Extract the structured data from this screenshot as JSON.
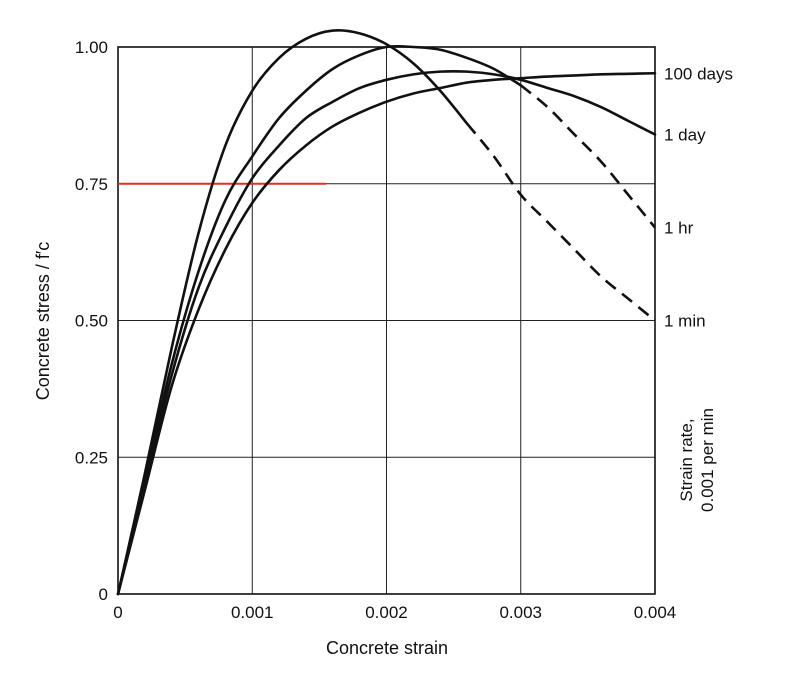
{
  "chart_data": {
    "type": "line",
    "title": "",
    "xlabel": "Concrete strain",
    "ylabel": "Concrete stress / f′c",
    "xlim": [
      0,
      0.004
    ],
    "ylim": [
      0,
      1.0
    ],
    "grid": true,
    "x_ticks": [
      {
        "value": 0,
        "label": "0"
      },
      {
        "value": 0.001,
        "label": "0.001"
      },
      {
        "value": 0.002,
        "label": "0.002"
      },
      {
        "value": 0.003,
        "label": "0.003"
      },
      {
        "value": 0.004,
        "label": "0.004"
      }
    ],
    "y_ticks": [
      {
        "value": 0,
        "label": "0"
      },
      {
        "value": 0.25,
        "label": "0.25"
      },
      {
        "value": 0.5,
        "label": "0.50"
      },
      {
        "value": 0.75,
        "label": "0.75"
      },
      {
        "value": 1.0,
        "label": "1.00"
      }
    ],
    "right_axis_label": [
      "Strain rate,",
      "0.001 per min"
    ],
    "series": [
      {
        "name": "1 min",
        "end_label": "1 min",
        "color": "#111111",
        "points": [
          [
            0,
            0
          ],
          [
            0.0002,
            0.22
          ],
          [
            0.0004,
            0.45
          ],
          [
            0.0006,
            0.66
          ],
          [
            0.0008,
            0.82
          ],
          [
            0.001,
            0.92
          ],
          [
            0.0012,
            0.98
          ],
          [
            0.0014,
            1.015
          ],
          [
            0.0016,
            1.03
          ],
          [
            0.0018,
            1.025
          ],
          [
            0.002,
            1.005
          ],
          [
            0.0022,
            0.97
          ],
          [
            0.0024,
            0.92
          ],
          [
            0.0026,
            0.86
          ],
          [
            0.0028,
            0.8
          ],
          [
            0.003,
            0.73
          ],
          [
            0.0032,
            0.68
          ],
          [
            0.0034,
            0.63
          ],
          [
            0.0036,
            0.58
          ],
          [
            0.0038,
            0.54
          ],
          [
            0.004,
            0.5
          ]
        ],
        "dashed_from": 0.0025
      },
      {
        "name": "1 hr",
        "end_label": "1 hr",
        "color": "#111111",
        "points": [
          [
            0,
            0
          ],
          [
            0.0002,
            0.21
          ],
          [
            0.0004,
            0.42
          ],
          [
            0.0006,
            0.59
          ],
          [
            0.0008,
            0.72
          ],
          [
            0.001,
            0.8
          ],
          [
            0.0012,
            0.87
          ],
          [
            0.0014,
            0.92
          ],
          [
            0.0016,
            0.96
          ],
          [
            0.0018,
            0.985
          ],
          [
            0.002,
            1.0
          ],
          [
            0.0022,
            1.0
          ],
          [
            0.0024,
            0.995
          ],
          [
            0.0026,
            0.98
          ],
          [
            0.0028,
            0.96
          ],
          [
            0.003,
            0.93
          ],
          [
            0.0032,
            0.89
          ],
          [
            0.0034,
            0.84
          ],
          [
            0.0036,
            0.79
          ],
          [
            0.0038,
            0.73
          ],
          [
            0.004,
            0.67
          ]
        ],
        "dashed_from": 0.0029
      },
      {
        "name": "1 day",
        "end_label": "1 day",
        "color": "#111111",
        "points": [
          [
            0,
            0
          ],
          [
            0.0002,
            0.2
          ],
          [
            0.0004,
            0.4
          ],
          [
            0.0006,
            0.56
          ],
          [
            0.0008,
            0.67
          ],
          [
            0.001,
            0.76
          ],
          [
            0.0012,
            0.82
          ],
          [
            0.0014,
            0.87
          ],
          [
            0.0016,
            0.9
          ],
          [
            0.0018,
            0.925
          ],
          [
            0.002,
            0.94
          ],
          [
            0.0022,
            0.95
          ],
          [
            0.0024,
            0.955
          ],
          [
            0.0026,
            0.955
          ],
          [
            0.0028,
            0.95
          ],
          [
            0.003,
            0.94
          ],
          [
            0.0032,
            0.925
          ],
          [
            0.0034,
            0.91
          ],
          [
            0.0036,
            0.89
          ],
          [
            0.0038,
            0.865
          ],
          [
            0.004,
            0.84
          ]
        ]
      },
      {
        "name": "100 days",
        "end_label": "100 days",
        "color": "#111111",
        "points": [
          [
            0,
            0
          ],
          [
            0.0002,
            0.19
          ],
          [
            0.0004,
            0.38
          ],
          [
            0.0006,
            0.52
          ],
          [
            0.0008,
            0.63
          ],
          [
            0.001,
            0.715
          ],
          [
            0.0012,
            0.775
          ],
          [
            0.0014,
            0.82
          ],
          [
            0.0016,
            0.855
          ],
          [
            0.0018,
            0.88
          ],
          [
            0.002,
            0.9
          ],
          [
            0.0022,
            0.915
          ],
          [
            0.0024,
            0.925
          ],
          [
            0.0026,
            0.935
          ],
          [
            0.0028,
            0.94
          ],
          [
            0.003,
            0.943
          ],
          [
            0.0032,
            0.946
          ],
          [
            0.0034,
            0.948
          ],
          [
            0.0036,
            0.95
          ],
          [
            0.0038,
            0.951
          ],
          [
            0.004,
            0.952
          ]
        ]
      }
    ],
    "reference_line": {
      "y": 0.75,
      "x_start": 0,
      "x_end": 0.00155,
      "color": "#e0301e"
    }
  }
}
